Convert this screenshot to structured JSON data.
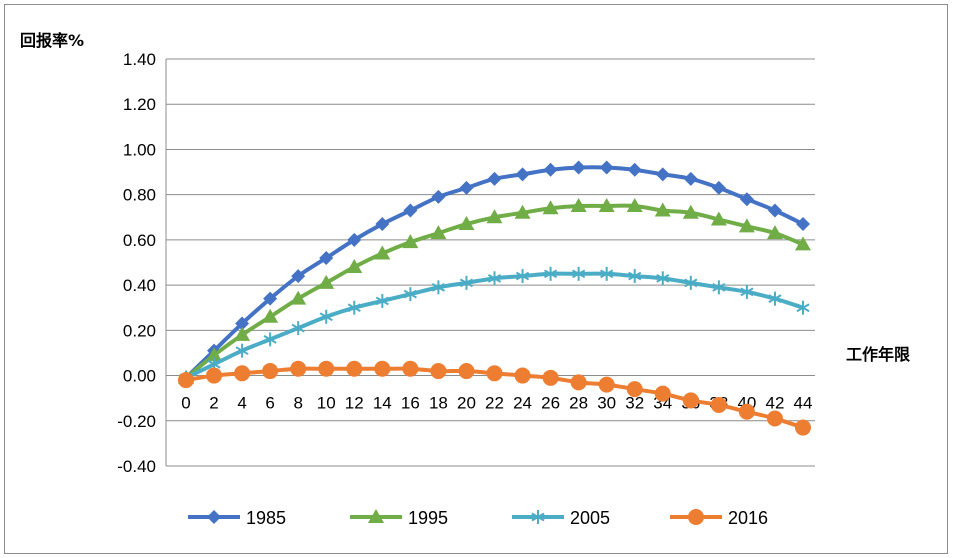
{
  "chart_data": {
    "type": "line",
    "ylabel": "回报率%",
    "xlabel": "工作年限",
    "ylim": [
      -0.4,
      1.4
    ],
    "y_ticks": [
      "1.40",
      "1.20",
      "1.00",
      "0.80",
      "0.60",
      "0.40",
      "0.20",
      "0.00",
      "-0.20",
      "-0.40"
    ],
    "x": [
      0,
      2,
      4,
      6,
      8,
      10,
      12,
      14,
      16,
      18,
      20,
      22,
      24,
      26,
      28,
      30,
      32,
      34,
      36,
      38,
      40,
      42,
      44
    ],
    "x_ticks": [
      "0",
      "2",
      "4",
      "6",
      "8",
      "10",
      "12",
      "14",
      "16",
      "18",
      "20",
      "22",
      "24",
      "26",
      "28",
      "30",
      "32",
      "34",
      "36",
      "38",
      "40",
      "42",
      "44"
    ],
    "grid": "horizontal",
    "legend_position": "bottom",
    "series": [
      {
        "name": "1985",
        "color": "#4472c4",
        "marker": "diamond",
        "values": [
          -0.01,
          0.11,
          0.23,
          0.34,
          0.44,
          0.52,
          0.6,
          0.67,
          0.73,
          0.79,
          0.83,
          0.87,
          0.89,
          0.91,
          0.92,
          0.92,
          0.91,
          0.89,
          0.87,
          0.83,
          0.78,
          0.73,
          0.67
        ]
      },
      {
        "name": "1995",
        "color": "#70ad47",
        "marker": "triangle",
        "values": [
          -0.01,
          0.09,
          0.18,
          0.26,
          0.34,
          0.41,
          0.48,
          0.54,
          0.59,
          0.63,
          0.67,
          0.7,
          0.72,
          0.74,
          0.75,
          0.75,
          0.75,
          0.73,
          0.72,
          0.69,
          0.66,
          0.63,
          0.58
        ]
      },
      {
        "name": "2005",
        "color": "#4bacc6",
        "marker": "asterisk",
        "values": [
          -0.01,
          0.05,
          0.11,
          0.16,
          0.21,
          0.26,
          0.3,
          0.33,
          0.36,
          0.39,
          0.41,
          0.43,
          0.44,
          0.45,
          0.45,
          0.45,
          0.44,
          0.43,
          0.41,
          0.39,
          0.37,
          0.34,
          0.3
        ]
      },
      {
        "name": "2016",
        "color": "#ed7d31",
        "marker": "circle",
        "values": [
          -0.02,
          0.0,
          0.01,
          0.02,
          0.03,
          0.03,
          0.03,
          0.03,
          0.03,
          0.02,
          0.02,
          0.01,
          0.0,
          -0.01,
          -0.03,
          -0.04,
          -0.06,
          -0.08,
          -0.11,
          -0.13,
          -0.16,
          -0.19,
          -0.23
        ]
      }
    ]
  }
}
